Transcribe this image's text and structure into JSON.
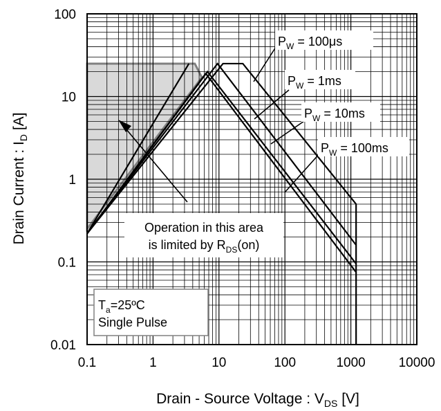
{
  "chart_data": {
    "type": "line",
    "xscale": "log",
    "yscale": "log",
    "xlim": [
      0.1,
      10000
    ],
    "ylim": [
      0.01,
      100
    ],
    "xlabel": {
      "main": "Drain - Source Voltage : V",
      "sub": "DS",
      "unit": " [V]"
    },
    "ylabel": {
      "main": "Drain Current : I",
      "sub": "D",
      "unit": " [A]"
    },
    "x_ticks": [
      "0.1",
      "1",
      "10",
      "100",
      "1000",
      "10000"
    ],
    "y_ticks": [
      "0.01",
      "0.1",
      "1",
      "10",
      "100"
    ],
    "grid": true,
    "shaded_region": {
      "name": "Operation in this area is limited by RDS(on)",
      "points": [
        [
          0.1,
          0.25
        ],
        [
          0.1,
          25
        ],
        [
          4.3,
          25
        ],
        [
          5.5,
          17
        ]
      ]
    },
    "series": [
      {
        "values": [
          [
            0.1,
            0.22
          ],
          [
            11.5,
            25
          ],
          [
            23,
            25
          ],
          [
            1200,
            0.5
          ],
          [
            1200,
            0.01
          ]
        ]
      },
      {
        "values": [
          [
            0.1,
            0.22
          ],
          [
            9.5,
            25
          ],
          [
            1200,
            0.16
          ]
        ]
      },
      {
        "values": [
          [
            0.1,
            0.22
          ],
          [
            6.7,
            20
          ],
          [
            1200,
            0.095
          ]
        ]
      },
      {
        "values": [
          [
            0.1,
            0.22
          ],
          [
            6.3,
            19
          ],
          [
            1200,
            0.075
          ]
        ]
      },
      {
        "values": [
          [
            0.1,
            0.22
          ],
          [
            3.5,
            25
          ]
        ]
      }
    ],
    "annotations": [
      {
        "main": "P",
        "sub": "W",
        "rest": " = 100μs"
      },
      {
        "main": "P",
        "sub": "W",
        "rest": " = 1ms"
      },
      {
        "main": "P",
        "sub": "W",
        "rest": " = 10ms"
      },
      {
        "main": "P",
        "sub": "W",
        "rest": " = 100ms"
      }
    ],
    "region_note": {
      "line1": "Operation in this area",
      "line2_main": "is limited by R",
      "line2_sub": "DS",
      "line2_rest": "(on)"
    },
    "conditions": {
      "line1_main": "T",
      "line1_sub": "a",
      "line1_rest": "=25ºC",
      "line2": "Single Pulse"
    }
  }
}
